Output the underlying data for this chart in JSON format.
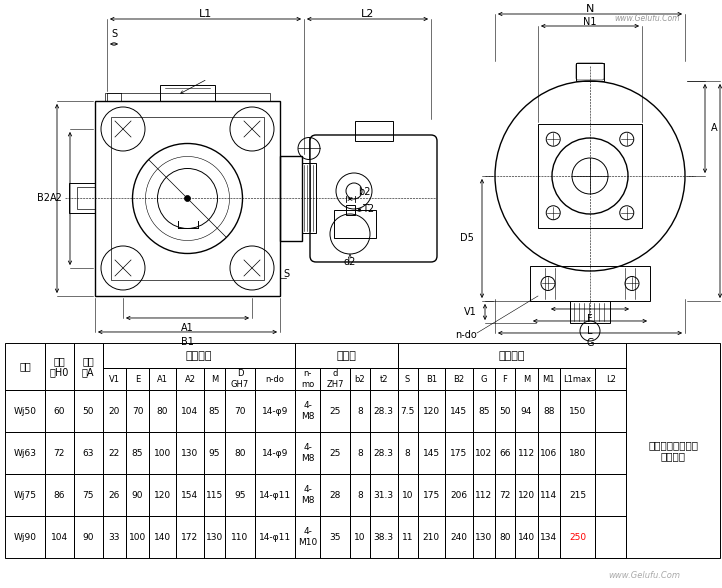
{
  "bg_color": "#ffffff",
  "lw": 0.7,
  "lw_thick": 1.0,
  "color": "black",
  "table": {
    "rows": [
      [
        "Wj50",
        "60",
        "50",
        "20",
        "70",
        "80",
        "104",
        "85",
        "70",
        "14-φ9",
        "4-\nM8",
        "25",
        "8",
        "28.3",
        "7.5",
        "120",
        "145",
        "85",
        "50",
        "94",
        "88",
        "150",
        ""
      ],
      [
        "Wj63",
        "72",
        "63",
        "22",
        "85",
        "100",
        "130",
        "95",
        "80",
        "14-φ9",
        "4-\nM8",
        "25",
        "8",
        "28.3",
        "8",
        "145",
        "175",
        "102",
        "66",
        "112",
        "106",
        "180",
        ""
      ],
      [
        "Wj75",
        "86",
        "75",
        "26",
        "90",
        "120",
        "154",
        "115",
        "95",
        "14-φ11",
        "4-\nM8",
        "28",
        "8",
        "31.3",
        "10",
        "175",
        "206",
        "112",
        "72",
        "120",
        "114",
        "215",
        ""
      ],
      [
        "Wj90",
        "104",
        "90",
        "33",
        "100",
        "140",
        "172",
        "130",
        "110",
        "14-φ11",
        "4-\nM10",
        "35",
        "10",
        "38.3",
        "11",
        "210",
        "240",
        "130",
        "80",
        "140",
        "134",
        "250",
        ""
      ]
    ],
    "note": "由所配无级变速器\n型号决定",
    "L2_red_row": 3,
    "L2_red_col": 21
  }
}
